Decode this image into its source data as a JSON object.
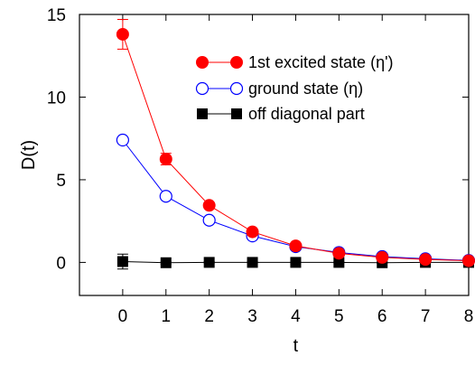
{
  "chart_data": {
    "type": "line",
    "title": "",
    "xlabel": "t",
    "ylabel": "D(t)",
    "xlim": [
      -1,
      8
    ],
    "ylim": [
      -2,
      15
    ],
    "xticks": [
      0,
      1,
      2,
      3,
      4,
      5,
      6,
      7,
      8
    ],
    "yticks": [
      0,
      5,
      10,
      15
    ],
    "grid": false,
    "legend_position": "top-right",
    "series": [
      {
        "name": "1st excited state (η')",
        "color": "#ff0000",
        "marker": "filled-circle",
        "x": [
          0,
          1,
          2,
          3,
          4,
          5,
          6,
          7,
          8
        ],
        "y": [
          13.8,
          6.25,
          3.45,
          1.85,
          1.0,
          0.55,
          0.3,
          0.18,
          0.1
        ],
        "yerr": [
          0.9,
          0.35,
          0.15,
          0.1,
          0.05,
          0.03,
          0.02,
          0.02,
          0.02
        ]
      },
      {
        "name": "ground state (η)",
        "color": "#0000ff",
        "marker": "open-circle",
        "x": [
          0,
          1,
          2,
          3,
          4,
          5,
          6,
          7,
          8
        ],
        "y": [
          7.4,
          4.0,
          2.55,
          1.6,
          0.95,
          0.6,
          0.35,
          0.22,
          0.12
        ],
        "yerr": [
          0,
          0,
          0,
          0,
          0,
          0,
          0,
          0,
          0
        ]
      },
      {
        "name": "off diagonal part",
        "color": "#000000",
        "marker": "filled-square",
        "x": [
          0,
          1,
          2,
          3,
          4,
          5,
          6,
          7,
          8
        ],
        "y": [
          0.05,
          -0.02,
          0.0,
          0.0,
          0.0,
          0.0,
          -0.02,
          0.0,
          0.0
        ],
        "yerr": [
          0.45,
          0.08,
          0.05,
          0.04,
          0.03,
          0.03,
          0.03,
          0.03,
          0.03
        ]
      }
    ]
  }
}
